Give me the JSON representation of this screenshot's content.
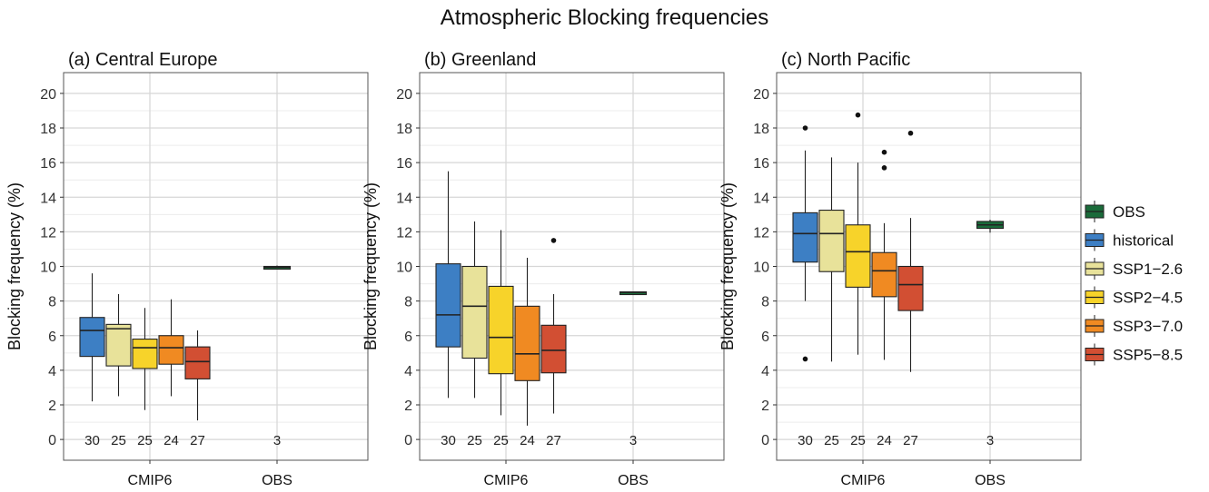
{
  "title": "Atmospheric Blocking frequencies",
  "colors": {
    "OBS": "#1a6b3a",
    "historical": "#3d7fc4",
    "SSP1-2.6": "#e8e29a",
    "SSP2-4.5": "#f7d32a",
    "SSP3-7.0": "#f08a22",
    "SSP5-8.5": "#d24f33"
  },
  "legend": {
    "position": "right",
    "items": [
      "OBS",
      "historical",
      "SSP1−2.6",
      "SSP2−4.5",
      "SSP3−7.0",
      "SSP5−8.5"
    ],
    "keys": [
      "OBS",
      "historical",
      "SSP1-2.6",
      "SSP2-4.5",
      "SSP3-7.0",
      "SSP5-8.5"
    ]
  },
  "chart_data": [
    {
      "type": "boxplot",
      "title": "(a) Central Europe",
      "ylabel": "Blocking frequency (%)",
      "ylim": [
        -1.2,
        21.2
      ],
      "yticks": [
        0,
        2,
        4,
        6,
        8,
        10,
        12,
        14,
        16,
        18,
        20
      ],
      "categories": [
        "CMIP6",
        "OBS"
      ],
      "grid": true,
      "boxes": [
        {
          "group": "CMIP6",
          "series": "historical",
          "n": "30",
          "whisker_low": 2.2,
          "q1": 4.8,
          "median": 6.3,
          "q3": 7.05,
          "whisker_high": 9.6,
          "outliers": []
        },
        {
          "group": "CMIP6",
          "series": "SSP1-2.6",
          "n": "25",
          "whisker_low": 2.5,
          "q1": 4.25,
          "median": 6.4,
          "q3": 6.65,
          "whisker_high": 8.4,
          "outliers": []
        },
        {
          "group": "CMIP6",
          "series": "SSP2-4.5",
          "n": "25",
          "whisker_low": 1.7,
          "q1": 4.1,
          "median": 5.3,
          "q3": 5.8,
          "whisker_high": 7.6,
          "outliers": []
        },
        {
          "group": "CMIP6",
          "series": "SSP3-7.0",
          "n": "24",
          "whisker_low": 2.5,
          "q1": 4.35,
          "median": 5.3,
          "q3": 6.0,
          "whisker_high": 8.1,
          "outliers": []
        },
        {
          "group": "CMIP6",
          "series": "SSP5-8.5",
          "n": "27",
          "whisker_low": 1.1,
          "q1": 3.5,
          "median": 4.5,
          "q3": 5.35,
          "whisker_high": 6.3,
          "outliers": []
        },
        {
          "group": "OBS",
          "series": "OBS",
          "n": "3",
          "whisker_low": 9.85,
          "q1": 9.9,
          "median": 9.95,
          "q3": 10.0,
          "whisker_high": 10.05,
          "outliers": []
        }
      ]
    },
    {
      "type": "boxplot",
      "title": "(b) Greenland",
      "ylabel": "Blocking frequency (%)",
      "ylim": [
        -1.2,
        21.2
      ],
      "yticks": [
        0,
        2,
        4,
        6,
        8,
        10,
        12,
        14,
        16,
        18,
        20
      ],
      "categories": [
        "CMIP6",
        "OBS"
      ],
      "grid": true,
      "boxes": [
        {
          "group": "CMIP6",
          "series": "historical",
          "n": "30",
          "whisker_low": 2.4,
          "q1": 5.35,
          "median": 7.2,
          "q3": 10.15,
          "whisker_high": 15.5,
          "outliers": []
        },
        {
          "group": "CMIP6",
          "series": "SSP1-2.6",
          "n": "25",
          "whisker_low": 2.4,
          "q1": 4.7,
          "median": 7.7,
          "q3": 10.0,
          "whisker_high": 12.6,
          "outliers": []
        },
        {
          "group": "CMIP6",
          "series": "SSP2-4.5",
          "n": "25",
          "whisker_low": 1.4,
          "q1": 3.8,
          "median": 5.9,
          "q3": 8.85,
          "whisker_high": 12.1,
          "outliers": []
        },
        {
          "group": "CMIP6",
          "series": "SSP3-7.0",
          "n": "24",
          "whisker_low": 0.8,
          "q1": 3.4,
          "median": 4.95,
          "q3": 7.7,
          "whisker_high": 10.5,
          "outliers": []
        },
        {
          "group": "CMIP6",
          "series": "SSP5-8.5",
          "n": "27",
          "whisker_low": 1.5,
          "q1": 3.85,
          "median": 5.15,
          "q3": 6.6,
          "whisker_high": 8.4,
          "outliers": [
            11.5
          ]
        },
        {
          "group": "OBS",
          "series": "OBS",
          "n": "3",
          "whisker_low": 8.45,
          "q1": 8.47,
          "median": 8.5,
          "q3": 8.53,
          "whisker_high": 8.55,
          "outliers": []
        }
      ]
    },
    {
      "type": "boxplot",
      "title": "(c) North Pacific",
      "ylabel": "Blocking frequency (%)",
      "ylim": [
        -1.2,
        21.2
      ],
      "yticks": [
        0,
        2,
        4,
        6,
        8,
        10,
        12,
        14,
        16,
        18,
        20
      ],
      "categories": [
        "CMIP6",
        "OBS"
      ],
      "grid": true,
      "boxes": [
        {
          "group": "CMIP6",
          "series": "historical",
          "n": "30",
          "whisker_low": 8.0,
          "q1": 10.25,
          "median": 11.9,
          "q3": 13.1,
          "whisker_high": 16.7,
          "outliers": [
            18.0,
            4.65
          ]
        },
        {
          "group": "CMIP6",
          "series": "SSP1-2.6",
          "n": "25",
          "whisker_low": 4.5,
          "q1": 9.7,
          "median": 11.9,
          "q3": 13.25,
          "whisker_high": 16.3,
          "outliers": []
        },
        {
          "group": "CMIP6",
          "series": "SSP2-4.5",
          "n": "25",
          "whisker_low": 4.9,
          "q1": 8.8,
          "median": 10.85,
          "q3": 12.4,
          "whisker_high": 16.0,
          "outliers": [
            18.75
          ]
        },
        {
          "group": "CMIP6",
          "series": "SSP3-7.0",
          "n": "24",
          "whisker_low": 4.6,
          "q1": 8.25,
          "median": 9.75,
          "q3": 10.8,
          "whisker_high": 12.5,
          "outliers": [
            16.6,
            15.7
          ]
        },
        {
          "group": "CMIP6",
          "series": "SSP5-8.5",
          "n": "27",
          "whisker_low": 3.9,
          "q1": 7.45,
          "median": 8.95,
          "q3": 10.0,
          "whisker_high": 12.8,
          "outliers": [
            17.7
          ]
        },
        {
          "group": "OBS",
          "series": "OBS",
          "n": "3",
          "whisker_low": 11.95,
          "q1": 12.2,
          "median": 12.4,
          "q3": 12.6,
          "whisker_high": 12.7,
          "outliers": []
        }
      ]
    }
  ]
}
